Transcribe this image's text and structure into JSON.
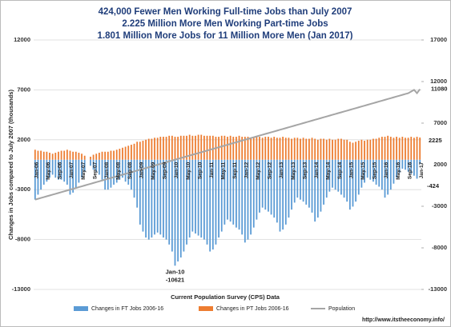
{
  "chart_data": {
    "type": "bar_line",
    "title": [
      "424,000 Fewer Men Working Full-time Jobs than July 2007",
      "2.225 Million More Men Working Part-time Jobs",
      "1.801 Million More Jobs for 11 Million More Men (Jan 2017)"
    ],
    "y_label": "Changes in Jobs compared to July 2007 (thousands)",
    "x_label": "Current Population Survey (CPS) Data",
    "source": "http://www.itstheeconomy.info/",
    "categories": [
      "Jan-06",
      null,
      null,
      null,
      "May-06",
      null,
      null,
      null,
      "Sep-06",
      null,
      null,
      null,
      "Jan-07",
      null,
      null,
      null,
      "May-07",
      null,
      null,
      null,
      "Sep-07",
      null,
      null,
      null,
      "Jan-08",
      null,
      null,
      null,
      "May-08",
      null,
      null,
      null,
      "Sep-08",
      null,
      null,
      null,
      "Jan-09",
      null,
      null,
      null,
      "May-09",
      null,
      null,
      null,
      "Sep-09",
      null,
      null,
      null,
      "Jan-10",
      null,
      null,
      null,
      "May-10",
      null,
      null,
      null,
      "Sep-10",
      null,
      null,
      null,
      "Jan-11",
      null,
      null,
      null,
      "May-11",
      null,
      null,
      null,
      "Sep-11",
      null,
      null,
      null,
      "Jan-12",
      null,
      null,
      null,
      "May-12",
      null,
      null,
      null,
      "Sep-12",
      null,
      null,
      null,
      "Jan-13",
      null,
      null,
      null,
      "May-13",
      null,
      null,
      null,
      "Sep-13",
      null,
      null,
      null,
      "Jan-14",
      null,
      null,
      null,
      "May-14",
      null,
      null,
      null,
      "Sep-14",
      null,
      null,
      null,
      "Jan-15",
      null,
      null,
      null,
      "May-15",
      null,
      null,
      null,
      "Sep-15",
      null,
      null,
      null,
      "Jan-16",
      null,
      null,
      null,
      "May-16",
      null,
      null,
      null,
      "Sep-16",
      null,
      null,
      null,
      "Jan-17"
    ],
    "series": [
      {
        "name": "Changes in FT Jobs 2006-16",
        "color": "#5b9bd5",
        "kind": "bar",
        "values": [
          -4000,
          -3500,
          -3000,
          -2500,
          -2200,
          -1800,
          -1500,
          -1800,
          -2000,
          -2000,
          -2200,
          -2500,
          -3500,
          -3300,
          -2800,
          -2300,
          -1800,
          -1200,
          0,
          -600,
          -1000,
          -1200,
          -1500,
          -2000,
          -3000,
          -3000,
          -2800,
          -2500,
          -2300,
          -2000,
          -1800,
          -2200,
          -2500,
          -3000,
          -3800,
          -4800,
          -6500,
          -7200,
          -7800,
          -8000,
          -7800,
          -7500,
          -7300,
          -7500,
          -7800,
          -8000,
          -8500,
          -9200,
          -10621,
          -10200,
          -9800,
          -9200,
          -8500,
          -7800,
          -7200,
          -7400,
          -7600,
          -7800,
          -8000,
          -8500,
          -9200,
          -9000,
          -8500,
          -7800,
          -7200,
          -6500,
          -6000,
          -6200,
          -6500,
          -6800,
          -7000,
          -7500,
          -8300,
          -8000,
          -7500,
          -6800,
          -6000,
          -5300,
          -4800,
          -5000,
          -5200,
          -5500,
          -5800,
          -6300,
          -7200,
          -7000,
          -6500,
          -5800,
          -5000,
          -4300,
          -3800,
          -4000,
          -4200,
          -4500,
          -4800,
          -5300,
          -6200,
          -5800,
          -5200,
          -4500,
          -3800,
          -3200,
          -2800,
          -3000,
          -3200,
          -3500,
          -3800,
          -4200,
          -5000,
          -4700,
          -4200,
          -3500,
          -2800,
          -2300,
          -1800,
          -2000,
          -2200,
          -2500,
          -2700,
          -3000,
          -3800,
          -3500,
          -3000,
          -2400,
          -1800,
          -1300,
          -900,
          -1000,
          -1200,
          -1400,
          -1600,
          -1900,
          -424
        ]
      },
      {
        "name": "Changes in PT Jobs 2006-16",
        "color": "#ed7d31",
        "kind": "bar",
        "values": [
          1000,
          900,
          900,
          800,
          800,
          700,
          600,
          700,
          800,
          900,
          900,
          1000,
          900,
          800,
          800,
          700,
          600,
          400,
          0,
          300,
          500,
          600,
          700,
          800,
          800,
          800,
          900,
          900,
          1000,
          1100,
          1200,
          1300,
          1400,
          1500,
          1600,
          1800,
          1800,
          1900,
          2000,
          2100,
          2100,
          2200,
          2200,
          2300,
          2300,
          2300,
          2400,
          2400,
          2300,
          2300,
          2400,
          2400,
          2400,
          2500,
          2400,
          2400,
          2500,
          2500,
          2400,
          2400,
          2400,
          2400,
          2300,
          2300,
          2400,
          2400,
          2300,
          2400,
          2300,
          2300,
          2400,
          2300,
          2300,
          2300,
          2200,
          2300,
          2300,
          2300,
          2200,
          2300,
          2300,
          2200,
          2300,
          2200,
          2200,
          2300,
          2200,
          2200,
          2100,
          2200,
          2200,
          2100,
          2200,
          2100,
          2100,
          2200,
          2100,
          2000,
          2100,
          2100,
          2000,
          2100,
          2000,
          2000,
          2100,
          2100,
          2000,
          2000,
          1800,
          1700,
          1800,
          1900,
          2000,
          1900,
          2000,
          2000,
          2100,
          2100,
          2200,
          2300,
          2300,
          2400,
          2300,
          2200,
          2300,
          2200,
          2300,
          2200,
          2200,
          2300,
          2200,
          2300,
          2225
        ]
      },
      {
        "name": "Population",
        "color": "#a5a5a5",
        "kind": "line",
        "axis": "y2",
        "values": [
          -2200,
          -2100,
          -2000,
          -1900,
          -1800,
          -1700,
          -1600,
          -1500,
          -1400,
          -1300,
          -1200,
          -1100,
          -1000,
          -900,
          -800,
          -700,
          -600,
          -500,
          -400,
          -300,
          -200,
          -100,
          0,
          100,
          200,
          300,
          400,
          500,
          600,
          700,
          800,
          900,
          1000,
          1100,
          1200,
          1300,
          1400,
          1500,
          1600,
          1700,
          1800,
          1900,
          2000,
          2100,
          2200,
          2300,
          2400,
          2500,
          2600,
          2700,
          2800,
          2900,
          3000,
          3100,
          3200,
          3300,
          3400,
          3500,
          3600,
          3700,
          3800,
          3900,
          4000,
          4100,
          4200,
          4300,
          4400,
          4500,
          4600,
          4700,
          4800,
          4900,
          5000,
          5100,
          5200,
          5300,
          5400,
          5500,
          5600,
          5700,
          5800,
          5900,
          6000,
          6100,
          6200,
          6300,
          6400,
          6500,
          6600,
          6700,
          6800,
          6900,
          7000,
          7100,
          7200,
          7300,
          7400,
          7500,
          7600,
          7700,
          7800,
          7900,
          8000,
          8100,
          8200,
          8300,
          8400,
          8500,
          8600,
          8700,
          8800,
          8900,
          9000,
          9100,
          9200,
          9300,
          9400,
          9500,
          9600,
          9700,
          9800,
          9900,
          10000,
          10100,
          10200,
          10300,
          10400,
          10500,
          10600,
          10800,
          11000,
          10600,
          11080
        ]
      }
    ],
    "ylim": [
      -13000,
      12000
    ],
    "yticks": [
      -13000,
      -8000,
      -3000,
      2000,
      7000,
      12000
    ],
    "y2lim": [
      -13000,
      17000
    ],
    "y2ticks": [
      -13000,
      -8000,
      -3000,
      2000,
      7000,
      12000,
      17000
    ],
    "grid": true,
    "legend": "bottom"
  }
}
